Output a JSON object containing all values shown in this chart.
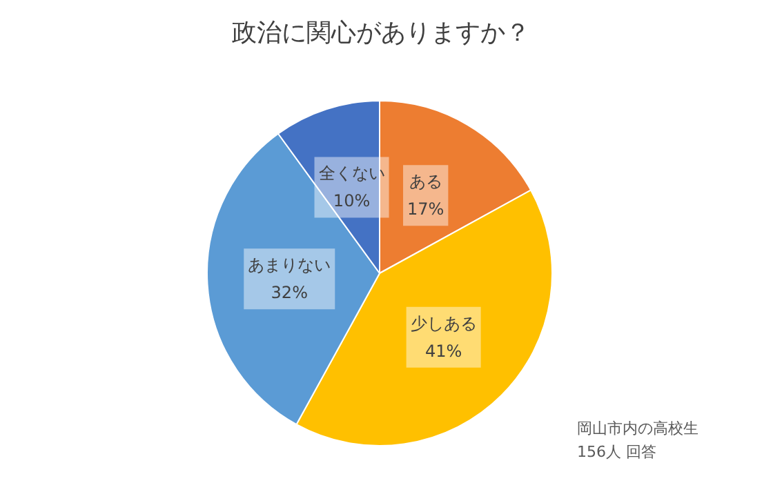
{
  "chart_data": {
    "type": "pie",
    "title": "政治に関心がありますか？",
    "categories": [
      "ある",
      "少しある",
      "あまりない",
      "全くない"
    ],
    "values": [
      17,
      41,
      32,
      10
    ],
    "value_labels": [
      "17%",
      "41%",
      "32%",
      "10%"
    ],
    "colors": [
      "#ed7d31",
      "#ffc000",
      "#5b9bd5",
      "#4472c4"
    ],
    "annotations": [
      "岡山市内の高校生",
      "156人 回答"
    ],
    "legend": false
  }
}
